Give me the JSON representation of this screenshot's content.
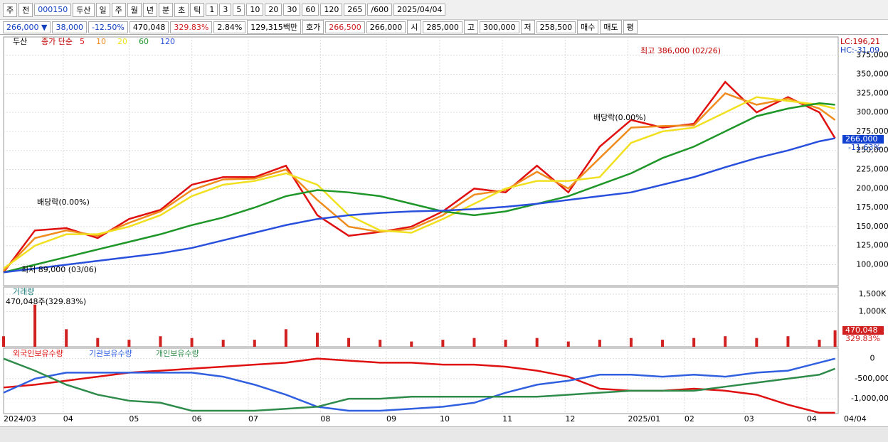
{
  "toolbar": [
    "주",
    "전",
    "000150",
    "두산",
    "일",
    "주",
    "월",
    "년",
    "분",
    "초",
    "틱",
    "1",
    "3",
    "5",
    "10",
    "20",
    "30",
    "60",
    "120",
    "265",
    "/600",
    "2025/04/04"
  ],
  "infobar": [
    "266,000 ▼",
    "38,000",
    "-12.50%",
    "470,048",
    "329.83%",
    "2.84%",
    "129,315백만",
    "호가",
    "266,500",
    "266,000",
    "시",
    "285,000",
    "고",
    "300,000",
    "저",
    "258,500",
    "매수",
    "매도",
    "평"
  ],
  "chart_data": [
    {
      "type": "line",
      "title": "두산",
      "legend_title": "종가 단순",
      "x": [
        0,
        10,
        20,
        30,
        40,
        50,
        60,
        70,
        80,
        90,
        100,
        110,
        120,
        130,
        140,
        150,
        160,
        170,
        180,
        190,
        200,
        210,
        220,
        230,
        240,
        250,
        260,
        265
      ],
      "series": [
        {
          "name": "5",
          "color": "#e01010",
          "values": [
            90000,
            145000,
            148000,
            135000,
            160000,
            172000,
            205000,
            215000,
            215000,
            230000,
            165000,
            138000,
            143000,
            150000,
            170000,
            200000,
            195000,
            230000,
            195000,
            255000,
            290000,
            280000,
            285000,
            340000,
            300000,
            320000,
            300000,
            266000
          ]
        },
        {
          "name": "10",
          "color": "#f08c1e",
          "values": [
            92000,
            135000,
            145000,
            138000,
            155000,
            170000,
            198000,
            212000,
            213000,
            225000,
            185000,
            150000,
            143000,
            147000,
            165000,
            192000,
            198000,
            222000,
            200000,
            240000,
            280000,
            282000,
            283000,
            325000,
            310000,
            318000,
            305000,
            290000
          ]
        },
        {
          "name": "20",
          "color": "#f0e020",
          "values": [
            95000,
            125000,
            140000,
            140000,
            150000,
            165000,
            190000,
            205000,
            210000,
            220000,
            205000,
            165000,
            145000,
            142000,
            160000,
            180000,
            200000,
            210000,
            210000,
            215000,
            260000,
            275000,
            280000,
            300000,
            320000,
            315000,
            310000,
            305000
          ]
        },
        {
          "name": "60",
          "color": "#1e9628",
          "values": [
            90000,
            100000,
            110000,
            120000,
            130000,
            140000,
            152000,
            162000,
            175000,
            190000,
            198000,
            195000,
            190000,
            180000,
            170000,
            165000,
            170000,
            180000,
            190000,
            205000,
            220000,
            240000,
            255000,
            275000,
            295000,
            305000,
            312000,
            310000
          ]
        },
        {
          "name": "120",
          "color": "#2850dc",
          "values": [
            90000,
            95000,
            100000,
            105000,
            110000,
            115000,
            122000,
            132000,
            142000,
            152000,
            160000,
            165000,
            168000,
            170000,
            171000,
            173000,
            176000,
            180000,
            185000,
            190000,
            195000,
            205000,
            215000,
            228000,
            240000,
            250000,
            262000,
            266000
          ]
        }
      ],
      "xlim": [
        0,
        266
      ],
      "ylim": [
        72500,
        399000
      ],
      "yticks": [
        {
          "value": 100000,
          "label": "100,000"
        },
        {
          "value": 125000,
          "label": "125,000"
        },
        {
          "value": 150000,
          "label": "150,000"
        },
        {
          "value": 175000,
          "label": "175,000"
        },
        {
          "value": 200000,
          "label": "200,000"
        },
        {
          "value": 225000,
          "label": "225,000"
        },
        {
          "value": 250000,
          "label": "250,000"
        },
        {
          "value": 275000,
          "label": "275,000"
        },
        {
          "value": 300000,
          "label": "300,000"
        },
        {
          "value": 325000,
          "label": "325,000"
        },
        {
          "value": 350000,
          "label": "350,000"
        },
        {
          "value": 375000,
          "label": "375,000"
        }
      ],
      "annotations": [
        "최고 386,000 (02/26)",
        "최저 89,000 (03/06)",
        "배당락(0.00%)",
        "배당락(0.00%)",
        "LC:196,21",
        "HC:-31,09",
        "266,000",
        "-11.63%"
      ]
    },
    {
      "type": "bar",
      "title": "거래량",
      "subtitle": "470,048주(329.83%)",
      "x": [
        0,
        10,
        20,
        30,
        40,
        50,
        60,
        70,
        80,
        90,
        100,
        110,
        120,
        130,
        140,
        150,
        160,
        170,
        180,
        190,
        200,
        210,
        220,
        230,
        240,
        250,
        260,
        265
      ],
      "series": [
        {
          "name": "거래량",
          "color": "#d02020",
          "values": [
            300000,
            1200000,
            500000,
            250000,
            200000,
            300000,
            250000,
            200000,
            200000,
            500000,
            400000,
            250000,
            200000,
            150000,
            200000,
            250000,
            200000,
            250000,
            150000,
            200000,
            250000,
            200000,
            250000,
            300000,
            250000,
            300000,
            200000,
            470048
          ]
        }
      ],
      "xlim": [
        0,
        266
      ],
      "ylim": [
        0,
        1700000
      ],
      "yticks": [
        {
          "value": 1000000,
          "label": "1,000K"
        },
        {
          "value": 1500000,
          "label": "1,500K"
        }
      ],
      "annotations": [
        "470,048",
        "329.83%"
      ]
    },
    {
      "type": "line",
      "x": [
        0,
        10,
        20,
        30,
        40,
        50,
        60,
        70,
        80,
        90,
        100,
        110,
        120,
        130,
        140,
        150,
        160,
        170,
        180,
        190,
        200,
        210,
        220,
        230,
        240,
        250,
        260,
        265
      ],
      "series": [
        {
          "name": "외국인보유수량",
          "color": "#e01010",
          "values": [
            -720000,
            -650000,
            -550000,
            -450000,
            -350000,
            -300000,
            -250000,
            -200000,
            -150000,
            -100000,
            0,
            -50000,
            -100000,
            -100000,
            -150000,
            -150000,
            -200000,
            -300000,
            -450000,
            -750000,
            -800000,
            -800000,
            -750000,
            -800000,
            -900000,
            -1150000,
            -1350000,
            -1350000
          ]
        },
        {
          "name": "기관보유수량",
          "color": "#3060e0",
          "values": [
            -850000,
            -500000,
            -350000,
            -350000,
            -350000,
            -350000,
            -350000,
            -450000,
            -650000,
            -900000,
            -1200000,
            -1300000,
            -1300000,
            -1250000,
            -1200000,
            -1100000,
            -850000,
            -650000,
            -550000,
            -400000,
            -400000,
            -450000,
            -400000,
            -450000,
            -350000,
            -300000,
            -100000,
            0
          ]
        },
        {
          "name": "개인보유수량",
          "color": "#2e8b4a",
          "values": [
            0,
            -300000,
            -650000,
            -900000,
            -1050000,
            -1100000,
            -1300000,
            -1300000,
            -1300000,
            -1250000,
            -1200000,
            -1000000,
            -1000000,
            -950000,
            -950000,
            -950000,
            -950000,
            -950000,
            -900000,
            -850000,
            -800000,
            -800000,
            -800000,
            -700000,
            -600000,
            -500000,
            -400000,
            -250000
          ]
        }
      ],
      "xlim": [
        0,
        266
      ],
      "ylim": [
        -1370000,
        260000
      ],
      "yticks": [
        0,
        {
          "value": -500000,
          "label": "-500,000"
        },
        {
          "value": -1000000,
          "label": "-1,000,000"
        }
      ],
      "xticks": [
        {
          "value": 0,
          "label": "2024/03"
        },
        {
          "value": 19,
          "label": "04"
        },
        {
          "value": 40,
          "label": "05"
        },
        {
          "value": 60,
          "label": "06"
        },
        {
          "value": 78,
          "label": "07"
        },
        {
          "value": 101,
          "label": "08"
        },
        {
          "value": 122,
          "label": "09"
        },
        {
          "value": 139,
          "label": "10"
        },
        {
          "value": 159,
          "label": "11"
        },
        {
          "value": 179,
          "label": "12"
        },
        {
          "value": 199,
          "label": "2025/01"
        },
        {
          "value": 217,
          "label": "02"
        },
        {
          "value": 236,
          "label": "03"
        },
        {
          "value": 256,
          "label": "04"
        },
        {
          "value": 266,
          "label": "04/04"
        }
      ]
    }
  ]
}
